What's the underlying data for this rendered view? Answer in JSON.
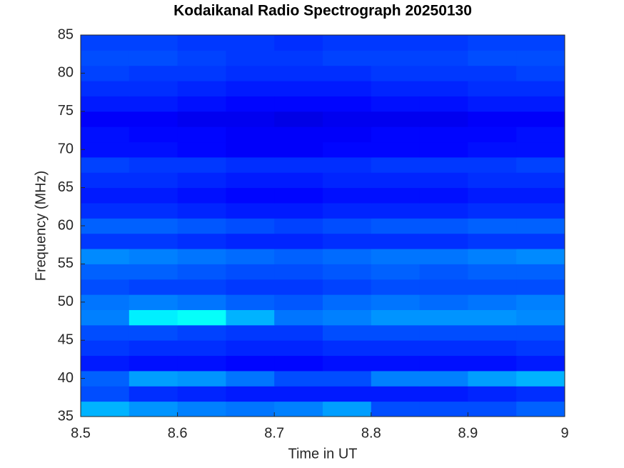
{
  "chart_data": {
    "type": "heatmap",
    "title": "Kodaikanal Radio Spectrograph  20250130",
    "x_label": "Time in UT",
    "y_label": "Frequency (MHz)",
    "colormap": "jet",
    "x": [
      8.525,
      8.575,
      8.625,
      8.675,
      8.725,
      8.775,
      8.825,
      8.875,
      8.925,
      8.975
    ],
    "y": [
      36,
      38,
      40,
      42,
      44,
      46,
      48,
      50,
      52,
      54,
      56,
      58,
      60,
      62,
      64,
      66,
      68,
      70,
      72,
      74,
      76,
      78,
      80,
      82,
      84
    ],
    "z": [
      [
        0.3,
        0.27,
        0.25,
        0.24,
        0.25,
        0.28,
        0.2,
        0.2,
        0.2,
        0.22
      ],
      [
        0.2,
        0.17,
        0.16,
        0.15,
        0.15,
        0.15,
        0.15,
        0.15,
        0.16,
        0.17
      ],
      [
        0.22,
        0.28,
        0.27,
        0.24,
        0.2,
        0.2,
        0.25,
        0.25,
        0.28,
        0.3
      ],
      [
        0.15,
        0.14,
        0.14,
        0.13,
        0.13,
        0.14,
        0.14,
        0.14,
        0.14,
        0.15
      ],
      [
        0.18,
        0.17,
        0.17,
        0.16,
        0.16,
        0.17,
        0.17,
        0.17,
        0.17,
        0.18
      ],
      [
        0.2,
        0.2,
        0.19,
        0.18,
        0.18,
        0.2,
        0.2,
        0.2,
        0.2,
        0.2
      ],
      [
        0.25,
        0.36,
        0.38,
        0.3,
        0.24,
        0.25,
        0.27,
        0.27,
        0.27,
        0.26
      ],
      [
        0.24,
        0.25,
        0.24,
        0.22,
        0.21,
        0.23,
        0.24,
        0.23,
        0.24,
        0.25
      ],
      [
        0.2,
        0.19,
        0.19,
        0.18,
        0.18,
        0.19,
        0.2,
        0.2,
        0.2,
        0.2
      ],
      [
        0.22,
        0.22,
        0.21,
        0.2,
        0.2,
        0.21,
        0.22,
        0.21,
        0.22,
        0.22
      ],
      [
        0.26,
        0.25,
        0.24,
        0.23,
        0.22,
        0.23,
        0.24,
        0.24,
        0.25,
        0.26
      ],
      [
        0.18,
        0.18,
        0.17,
        0.16,
        0.16,
        0.17,
        0.17,
        0.17,
        0.18,
        0.18
      ],
      [
        0.22,
        0.22,
        0.21,
        0.2,
        0.19,
        0.2,
        0.21,
        0.21,
        0.22,
        0.22
      ],
      [
        0.17,
        0.17,
        0.16,
        0.15,
        0.15,
        0.16,
        0.16,
        0.16,
        0.17,
        0.17
      ],
      [
        0.15,
        0.15,
        0.14,
        0.13,
        0.13,
        0.14,
        0.14,
        0.14,
        0.15,
        0.15
      ],
      [
        0.17,
        0.17,
        0.16,
        0.15,
        0.15,
        0.16,
        0.16,
        0.16,
        0.17,
        0.17
      ],
      [
        0.19,
        0.18,
        0.18,
        0.17,
        0.17,
        0.17,
        0.18,
        0.18,
        0.18,
        0.19
      ],
      [
        0.14,
        0.14,
        0.13,
        0.12,
        0.12,
        0.13,
        0.13,
        0.13,
        0.14,
        0.14
      ],
      [
        0.14,
        0.13,
        0.13,
        0.12,
        0.12,
        0.12,
        0.13,
        0.13,
        0.13,
        0.14
      ],
      [
        0.12,
        0.12,
        0.11,
        0.11,
        0.1,
        0.11,
        0.11,
        0.11,
        0.12,
        0.12
      ],
      [
        0.15,
        0.15,
        0.14,
        0.13,
        0.13,
        0.13,
        0.14,
        0.14,
        0.15,
        0.15
      ],
      [
        0.17,
        0.17,
        0.16,
        0.15,
        0.15,
        0.15,
        0.16,
        0.16,
        0.17,
        0.17
      ],
      [
        0.19,
        0.18,
        0.18,
        0.17,
        0.17,
        0.17,
        0.18,
        0.18,
        0.18,
        0.19
      ],
      [
        0.2,
        0.2,
        0.19,
        0.18,
        0.18,
        0.19,
        0.19,
        0.19,
        0.2,
        0.2
      ],
      [
        0.19,
        0.19,
        0.18,
        0.18,
        0.17,
        0.18,
        0.18,
        0.18,
        0.19,
        0.19
      ]
    ],
    "xlim": [
      8.5,
      9
    ],
    "ylim": [
      35,
      85
    ],
    "xticks": [
      8.5,
      8.6,
      8.7,
      8.8,
      8.9,
      9
    ],
    "yticks": [
      35,
      40,
      45,
      50,
      55,
      60,
      65,
      70,
      75,
      80,
      85
    ]
  }
}
